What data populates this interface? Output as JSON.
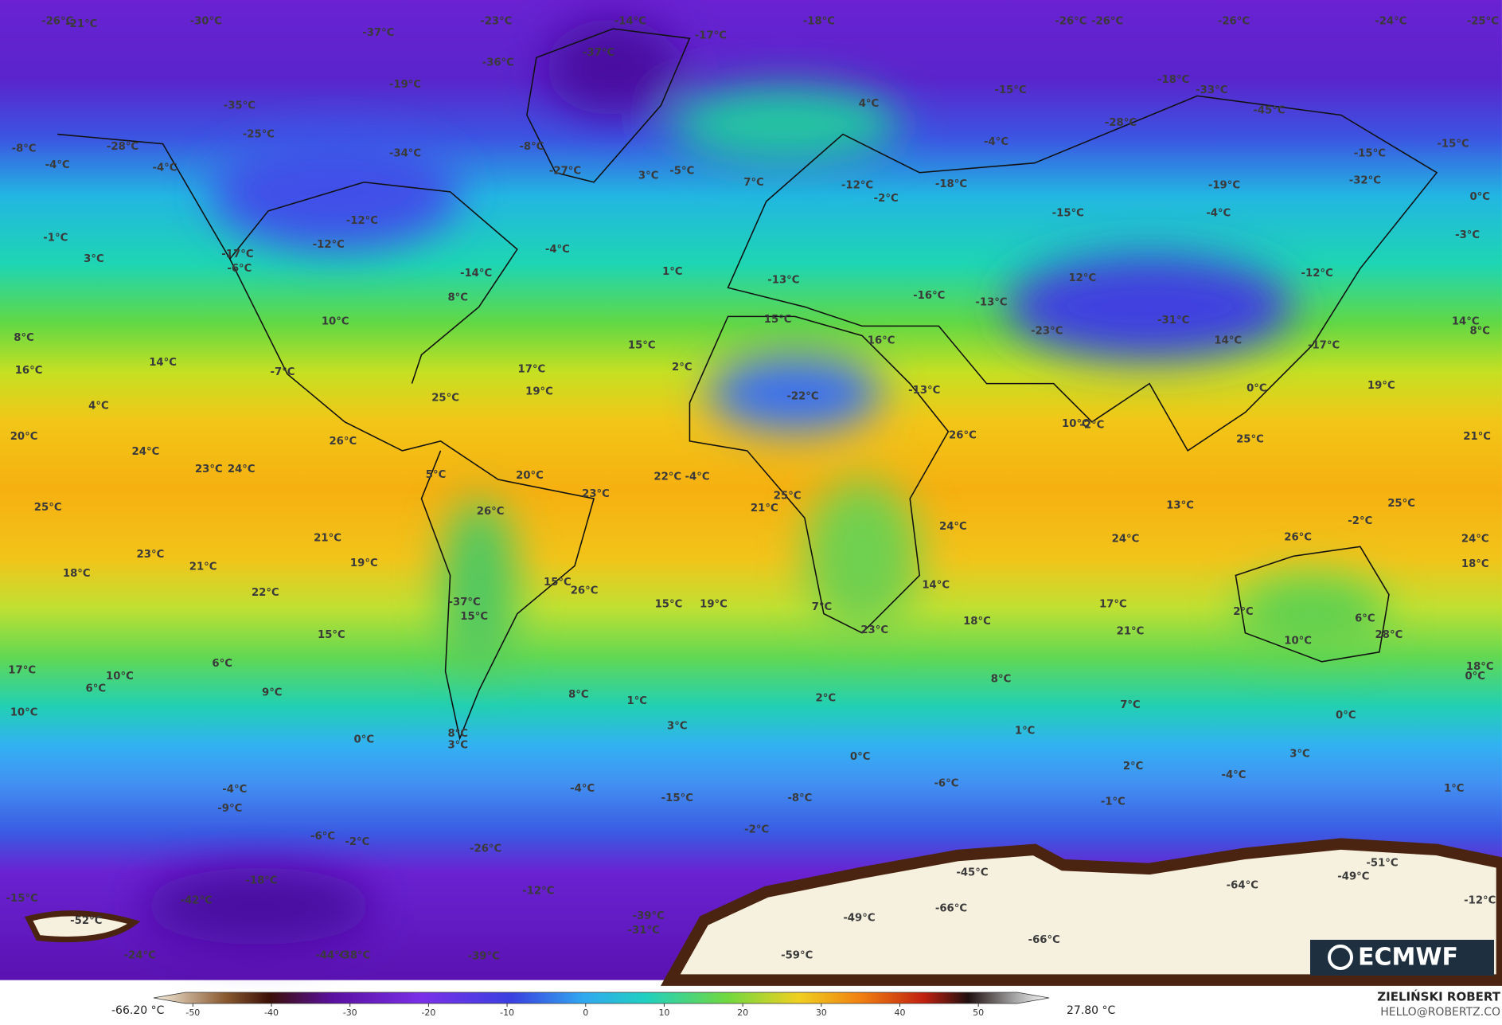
{
  "map": {
    "temperature_labels": [
      "-26°C",
      "-21°C",
      "-30°C",
      "-23°C",
      "-14°C",
      "-18°C",
      "-26°C",
      "-26°C",
      "-26°C",
      "-24°C",
      "-25°C",
      "-37°C",
      "-17°C",
      "-37°C",
      "-36°C",
      "-19°C",
      "-18°C",
      "-15°C",
      "-33°C",
      "4°C",
      "-35°C",
      "-45°C",
      "-28°C",
      "-25°C",
      "-8°C",
      "-28°C",
      "-34°C",
      "-8°C",
      "-4°C",
      "-15°C",
      "-15°C",
      "-4°C",
      "-4°C",
      "-27°C",
      "3°C",
      "-5°C",
      "7°C",
      "-12°C",
      "-18°C",
      "-19°C",
      "-32°C",
      "-2°C",
      "0°C",
      "-15°C",
      "-4°C",
      "-12°C",
      "-1°C",
      "-12°C",
      "-4°C",
      "-3°C",
      "3°C",
      "-17°C",
      "-6°C",
      "-14°C",
      "1°C",
      "-12°C",
      "12°C",
      "-13°C",
      "-16°C",
      "-13°C",
      "8°C",
      "10°C",
      "15°C",
      "-23°C",
      "-31°C",
      "14°C",
      "8°C",
      "8°C",
      "16°C",
      "14°C",
      "-17°C",
      "15°C",
      "14°C",
      "16°C",
      "17°C",
      "2°C",
      "-7°C",
      "19°C",
      "-22°C",
      "25°C",
      "-13°C",
      "0°C",
      "19°C",
      "4°C",
      "10°C",
      "-2°C",
      "20°C",
      "26°C",
      "26°C",
      "25°C",
      "21°C",
      "24°C",
      "23°C",
      "24°C",
      "5°C",
      "20°C",
      "22°C",
      "-4°C",
      "23°C",
      "25°C",
      "21°C",
      "26°C",
      "13°C",
      "25°C",
      "25°C",
      "24°C",
      "24°C",
      "26°C",
      "24°C",
      "-2°C",
      "21°C",
      "23°C",
      "19°C",
      "21°C",
      "18°C",
      "18°C",
      "15°C",
      "26°C",
      "22°C",
      "14°C",
      "-37°C",
      "15°C",
      "19°C",
      "7°C",
      "15°C",
      "17°C",
      "2°C",
      "6°C",
      "18°C",
      "23°C",
      "21°C",
      "15°C",
      "28°C",
      "10°C",
      "6°C",
      "17°C",
      "18°C",
      "10°C",
      "0°C",
      "6°C",
      "9°C",
      "8°C",
      "8°C",
      "1°C",
      "2°C",
      "7°C",
      "10°C",
      "3°C",
      "1°C",
      "0°C",
      "8°C",
      "3°C",
      "0°C",
      "0°C",
      "3°C",
      "2°C",
      "-4°C",
      "-4°C",
      "-4°C",
      "-6°C",
      "-15°C",
      "-8°C",
      "-1°C",
      "1°C",
      "-9°C",
      "-2°C",
      "-6°C",
      "-2°C",
      "-26°C",
      "-45°C",
      "-51°C",
      "-49°C",
      "-18°C",
      "-64°C",
      "-12°C",
      "-15°C",
      "-42°C",
      "-12°C",
      "-66°C",
      "-39°C",
      "-49°C",
      "-52°C",
      "-31°C",
      "-66°C",
      "-24°C",
      "-44°C",
      "-38°C",
      "-39°C",
      "-59°C"
    ]
  },
  "colorbar": {
    "min_label": "-66.20 °C",
    "max_label": "27.80 °C",
    "lim": [
      -55,
      59
    ],
    "ticks": [
      -50,
      -40,
      -30,
      -20,
      -10,
      0,
      10,
      20,
      30,
      40,
      50
    ]
  },
  "logo": "ECMWF",
  "author": {
    "name": "ZIELIŃSKI ROBERT",
    "email": "HELLO@ROBERTZ.CO"
  }
}
